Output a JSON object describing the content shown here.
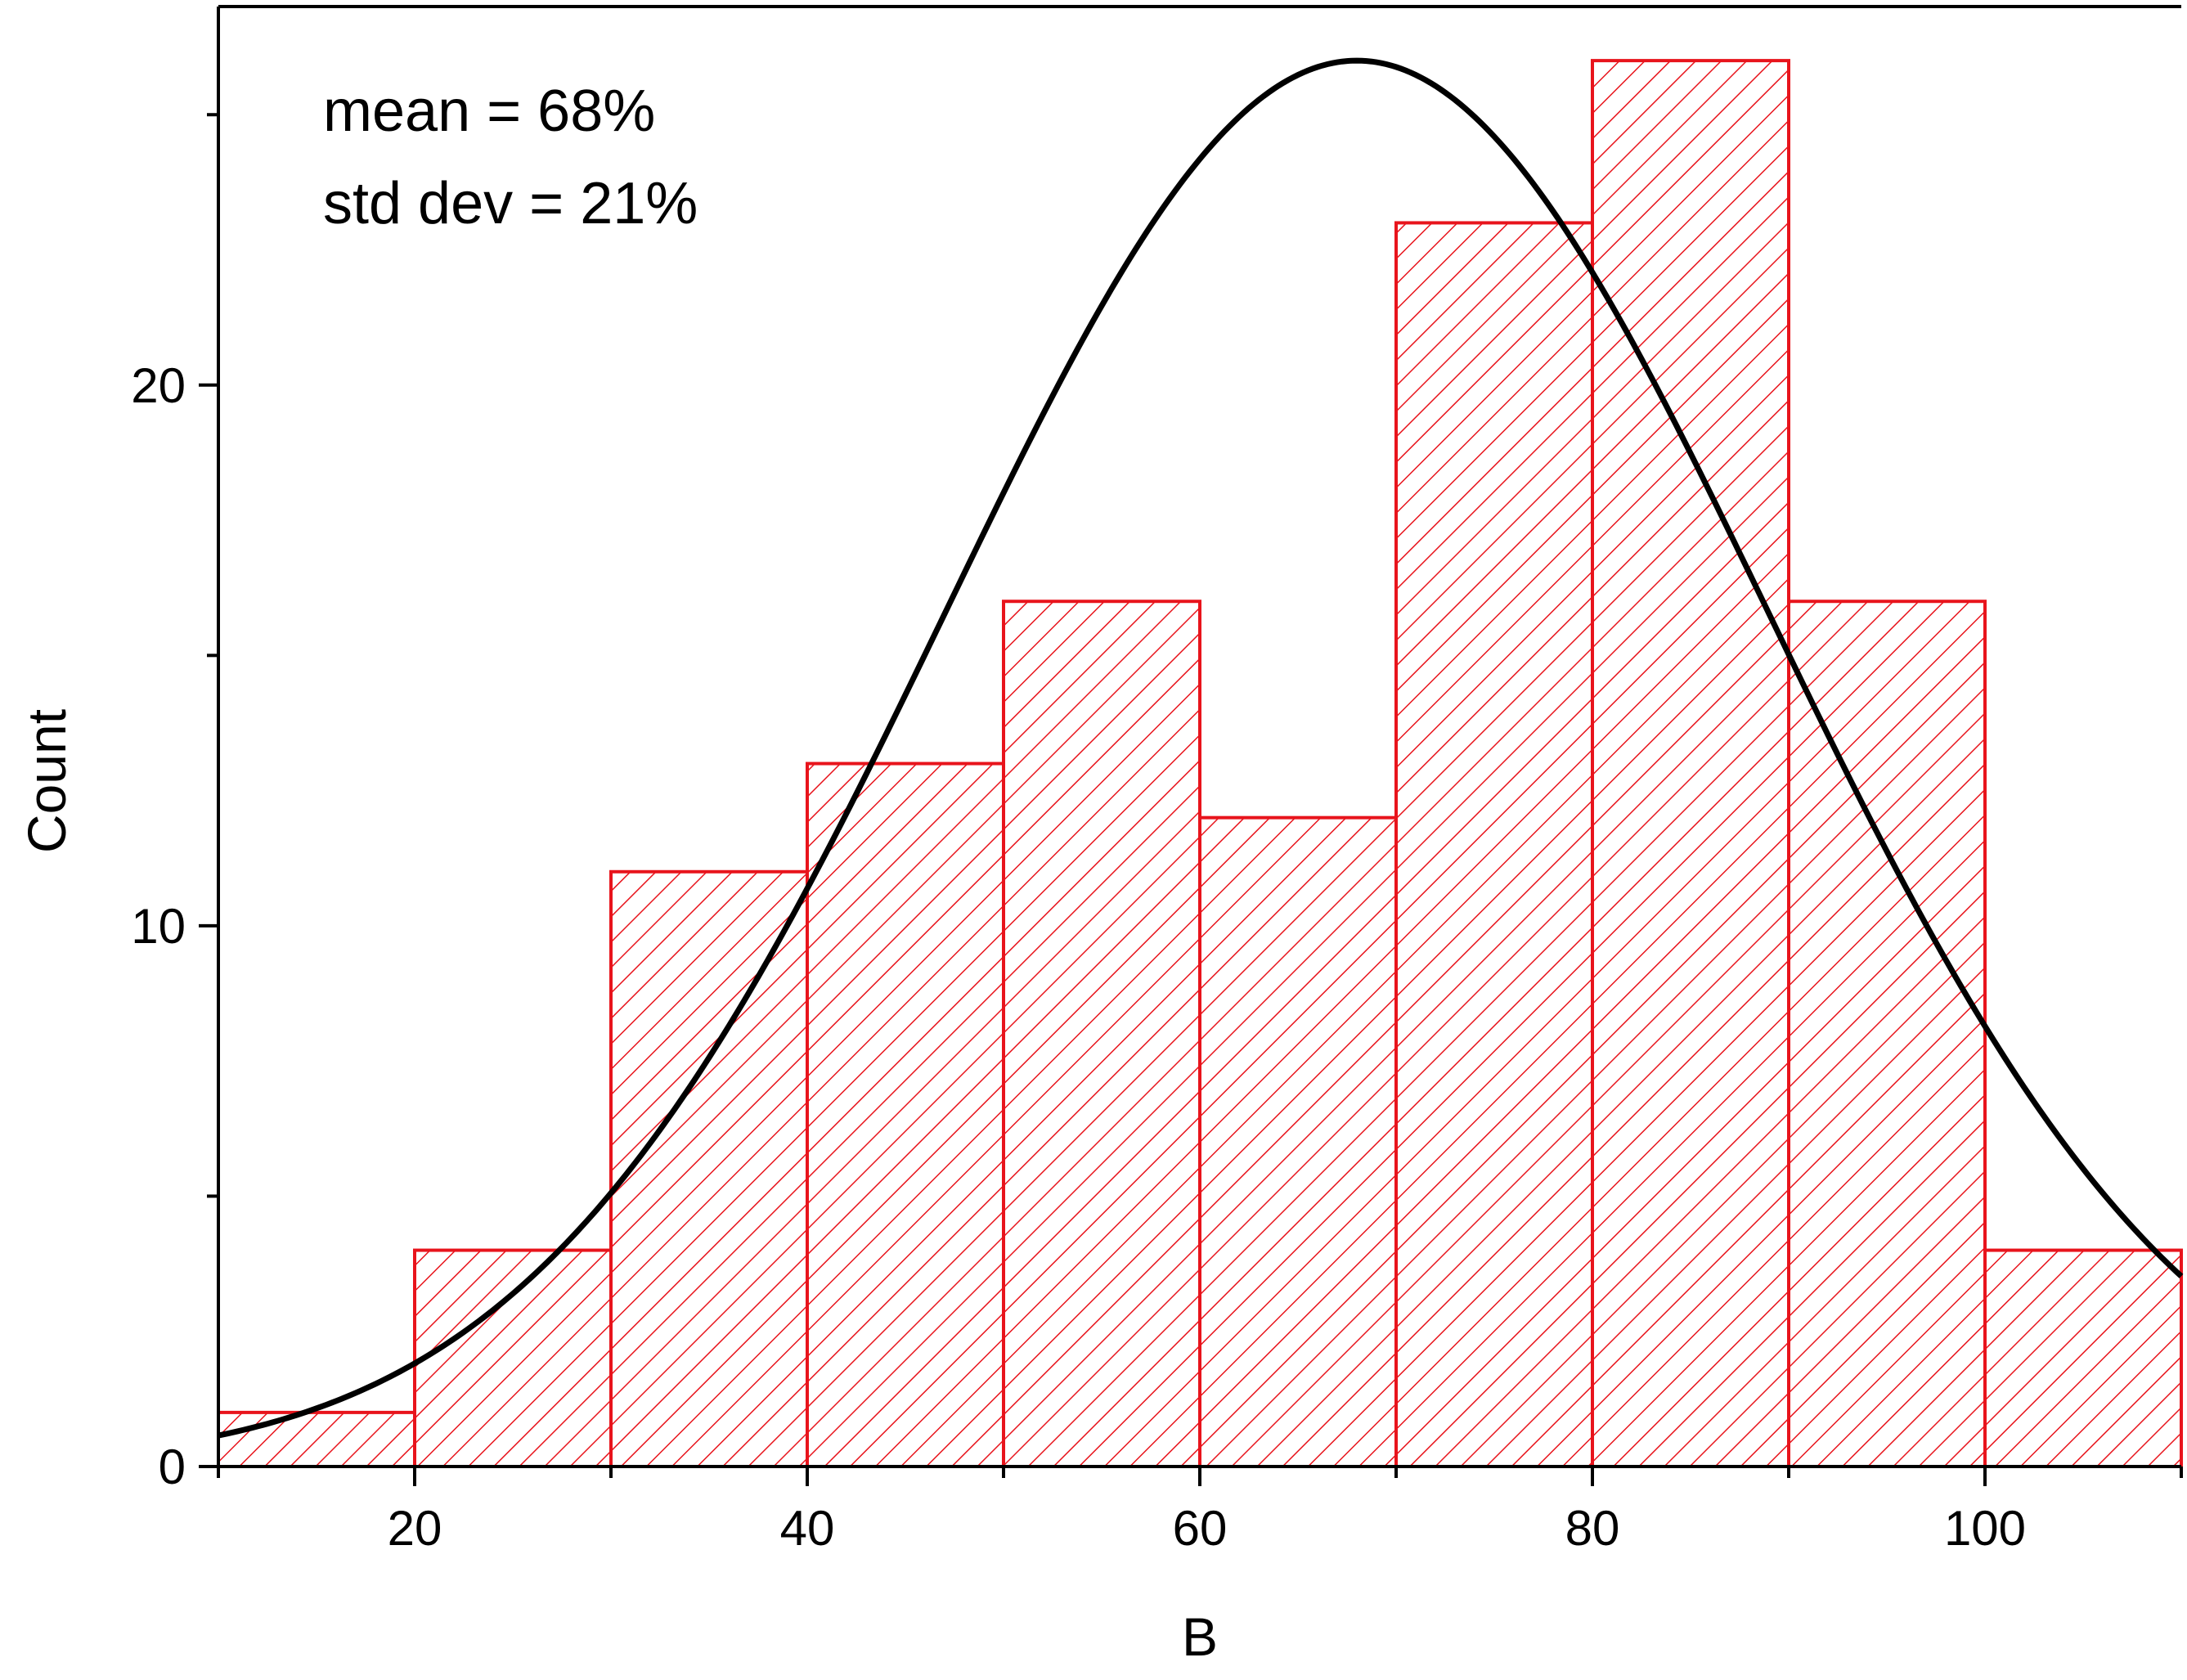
{
  "chart_data": {
    "type": "bar",
    "subtype": "histogram",
    "xlabel": "B",
    "ylabel": "Count",
    "xlim": [
      10,
      110
    ],
    "ylim": [
      0,
      27
    ],
    "x_ticks": [
      20,
      40,
      60,
      80,
      100
    ],
    "y_ticks": [
      0,
      10,
      20
    ],
    "bins": [
      {
        "start": 10,
        "end": 20,
        "count": 1
      },
      {
        "start": 20,
        "end": 30,
        "count": 4
      },
      {
        "start": 30,
        "end": 40,
        "count": 11
      },
      {
        "start": 40,
        "end": 50,
        "count": 13
      },
      {
        "start": 50,
        "end": 60,
        "count": 16
      },
      {
        "start": 60,
        "end": 70,
        "count": 12
      },
      {
        "start": 70,
        "end": 80,
        "count": 23
      },
      {
        "start": 80,
        "end": 90,
        "count": 26
      },
      {
        "start": 90,
        "end": 100,
        "count": 16
      },
      {
        "start": 100,
        "end": 110,
        "count": 4
      }
    ],
    "fit_curve": {
      "type": "normal",
      "mean": 68,
      "std_dev": 21,
      "peak": 26
    },
    "annotations": [
      "mean = 68%",
      "std dev = 21%"
    ],
    "colors": {
      "bar_stroke": "#e8141c",
      "hatch": "#e8141c",
      "curve": "#000000",
      "axis": "#000000"
    },
    "grid": false
  }
}
